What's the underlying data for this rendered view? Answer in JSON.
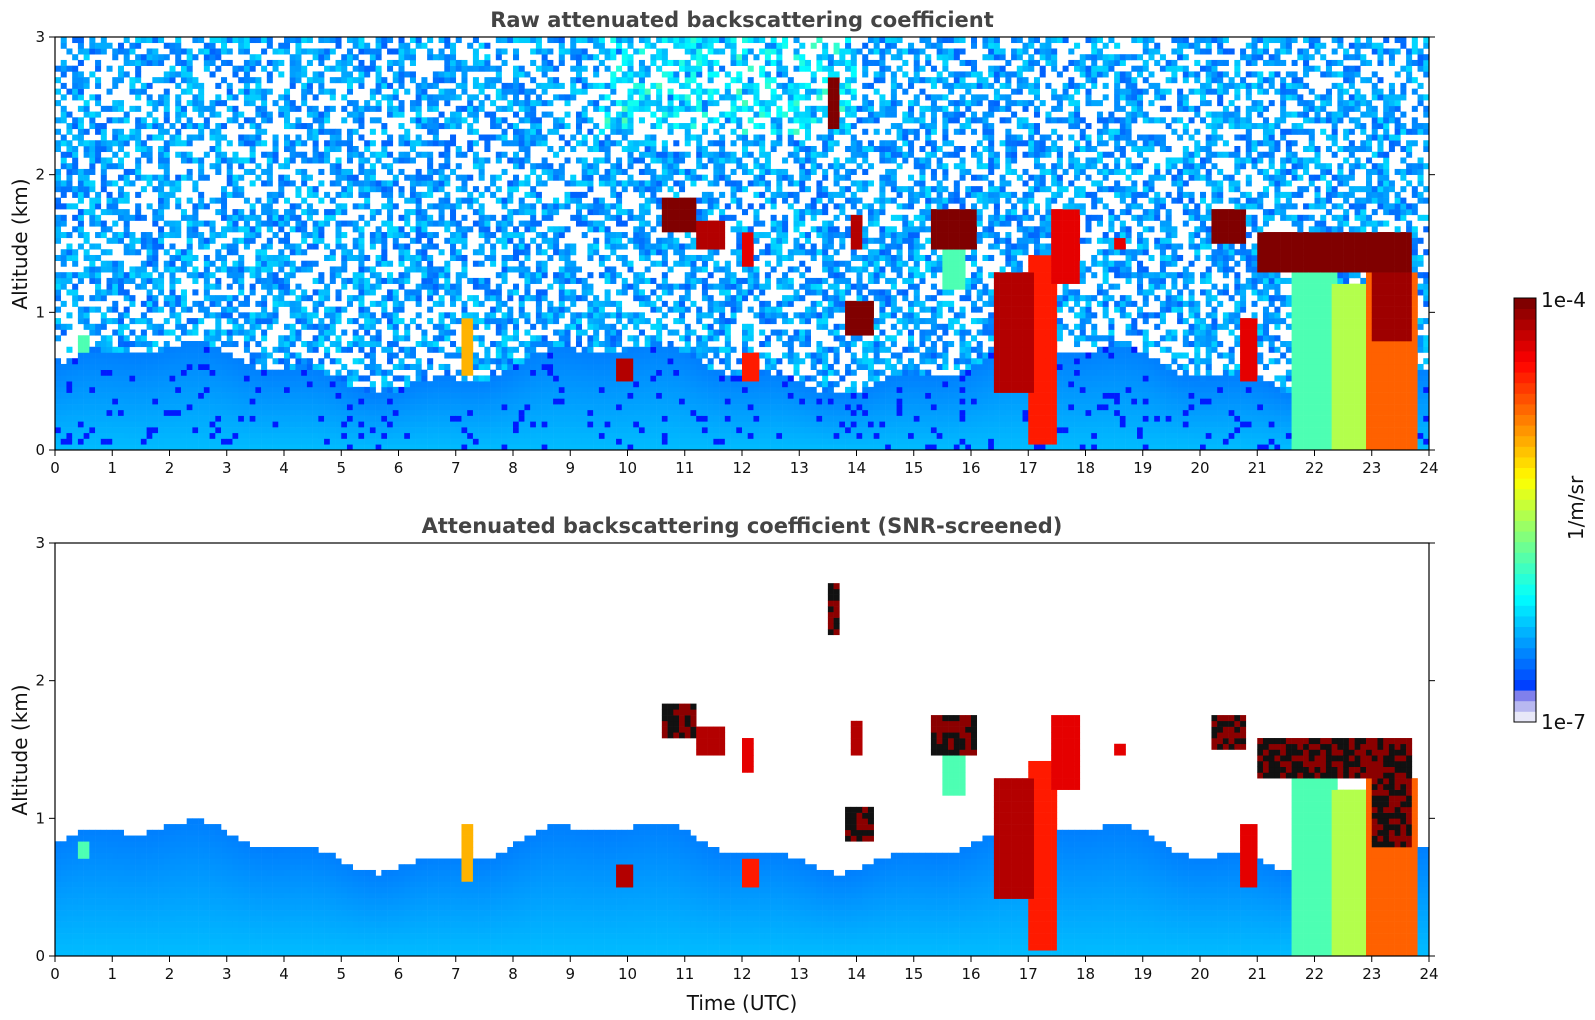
{
  "chart_data": [
    {
      "type": "heatmap",
      "title": "Raw attenuated backscattering coefficient",
      "xlabel": "",
      "ylabel": "Altitude (km)",
      "xlim": [
        0,
        24
      ],
      "ylim": [
        0,
        3
      ],
      "x_ticks": [
        "0",
        "1",
        "2",
        "3",
        "4",
        "5",
        "6",
        "7",
        "8",
        "9",
        "10",
        "11",
        "12",
        "13",
        "14",
        "15",
        "16",
        "17",
        "18",
        "19",
        "20",
        "21",
        "22",
        "23",
        "24"
      ],
      "y_ticks": [
        "0",
        "1",
        "2",
        "3"
      ],
      "boundary_layer_top_km": 0.6,
      "cloud_features": [
        {
          "t0": 0.4,
          "t1": 0.6,
          "z0": 0.7,
          "z1": 0.85,
          "level": 0.45
        },
        {
          "t0": 7.15,
          "t1": 7.3,
          "z0": 0.55,
          "z1": 0.95,
          "level": 0.7
        },
        {
          "t0": 9.8,
          "t1": 10.1,
          "z0": 0.5,
          "z1": 0.65,
          "level": 0.95
        },
        {
          "t0": 10.6,
          "t1": 11.2,
          "z0": 1.6,
          "z1": 1.85,
          "level": 1.0
        },
        {
          "t0": 11.2,
          "t1": 11.7,
          "z0": 1.45,
          "z1": 1.65,
          "level": 0.95
        },
        {
          "t0": 12.0,
          "t1": 12.2,
          "z0": 1.35,
          "z1": 1.6,
          "level": 0.9
        },
        {
          "t0": 12.0,
          "t1": 12.3,
          "z0": 0.5,
          "z1": 0.7,
          "level": 0.85
        },
        {
          "t0": 13.55,
          "t1": 13.7,
          "z0": 2.35,
          "z1": 2.7,
          "level": 1.0
        },
        {
          "t0": 13.8,
          "t1": 14.3,
          "z0": 0.85,
          "z1": 1.1,
          "level": 1.0
        },
        {
          "t0": 13.85,
          "t1": 14.05,
          "z0": 1.45,
          "z1": 1.7,
          "level": 0.95
        },
        {
          "t0": 15.3,
          "t1": 16.1,
          "z0": 1.45,
          "z1": 1.75,
          "level": 1.0
        },
        {
          "t0": 15.5,
          "t1": 15.9,
          "z0": 1.15,
          "z1": 1.45,
          "level": 0.45
        },
        {
          "t0": 16.4,
          "t1": 17.1,
          "z0": 0.4,
          "z1": 1.3,
          "level": 0.95
        },
        {
          "t0": 17.0,
          "t1": 17.5,
          "z0": 0.05,
          "z1": 1.4,
          "level": 0.85
        },
        {
          "t0": 17.4,
          "t1": 17.9,
          "z0": 1.2,
          "z1": 1.75,
          "level": 0.9
        },
        {
          "t0": 18.55,
          "t1": 18.7,
          "z0": 1.45,
          "z1": 1.55,
          "level": 0.9
        },
        {
          "t0": 20.2,
          "t1": 20.8,
          "z0": 1.5,
          "z1": 1.75,
          "level": 1.0
        },
        {
          "t0": 20.7,
          "t1": 21.0,
          "z0": 0.5,
          "z1": 0.95,
          "level": 0.9
        },
        {
          "t0": 21.0,
          "t1": 23.7,
          "z0": 1.3,
          "z1": 1.6,
          "level": 1.0
        },
        {
          "t0": 21.6,
          "t1": 22.4,
          "z0": 0.0,
          "z1": 1.3,
          "level": 0.45
        },
        {
          "t0": 22.3,
          "t1": 22.9,
          "z0": 0.0,
          "z1": 1.2,
          "level": 0.55
        },
        {
          "t0": 22.9,
          "t1": 23.75,
          "z0": 0.0,
          "z1": 1.3,
          "level": 0.78
        },
        {
          "t0": 23.0,
          "t1": 23.7,
          "z0": 0.8,
          "z1": 1.4,
          "level": 0.97
        }
      ]
    },
    {
      "type": "heatmap",
      "title": "Attenuated backscattering coefficient (SNR-screened)",
      "xlabel": "Time (UTC)",
      "ylabel": "Altitude (km)",
      "xlim": [
        0,
        24
      ],
      "ylim": [
        0,
        3
      ],
      "x_ticks": [
        "0",
        "1",
        "2",
        "3",
        "4",
        "5",
        "6",
        "7",
        "8",
        "9",
        "10",
        "11",
        "12",
        "13",
        "14",
        "15",
        "16",
        "17",
        "18",
        "19",
        "20",
        "21",
        "22",
        "23",
        "24"
      ],
      "y_ticks": [
        "0",
        "1",
        "2",
        "3"
      ],
      "boundary_layer_top_km": 0.8,
      "screening": "values below SNR threshold masked (white)"
    }
  ],
  "colorbar": {
    "label": "1/m/sr",
    "max_label": "1e-4",
    "min_label": "1e-7",
    "colormap": "jet",
    "scale": "log"
  }
}
